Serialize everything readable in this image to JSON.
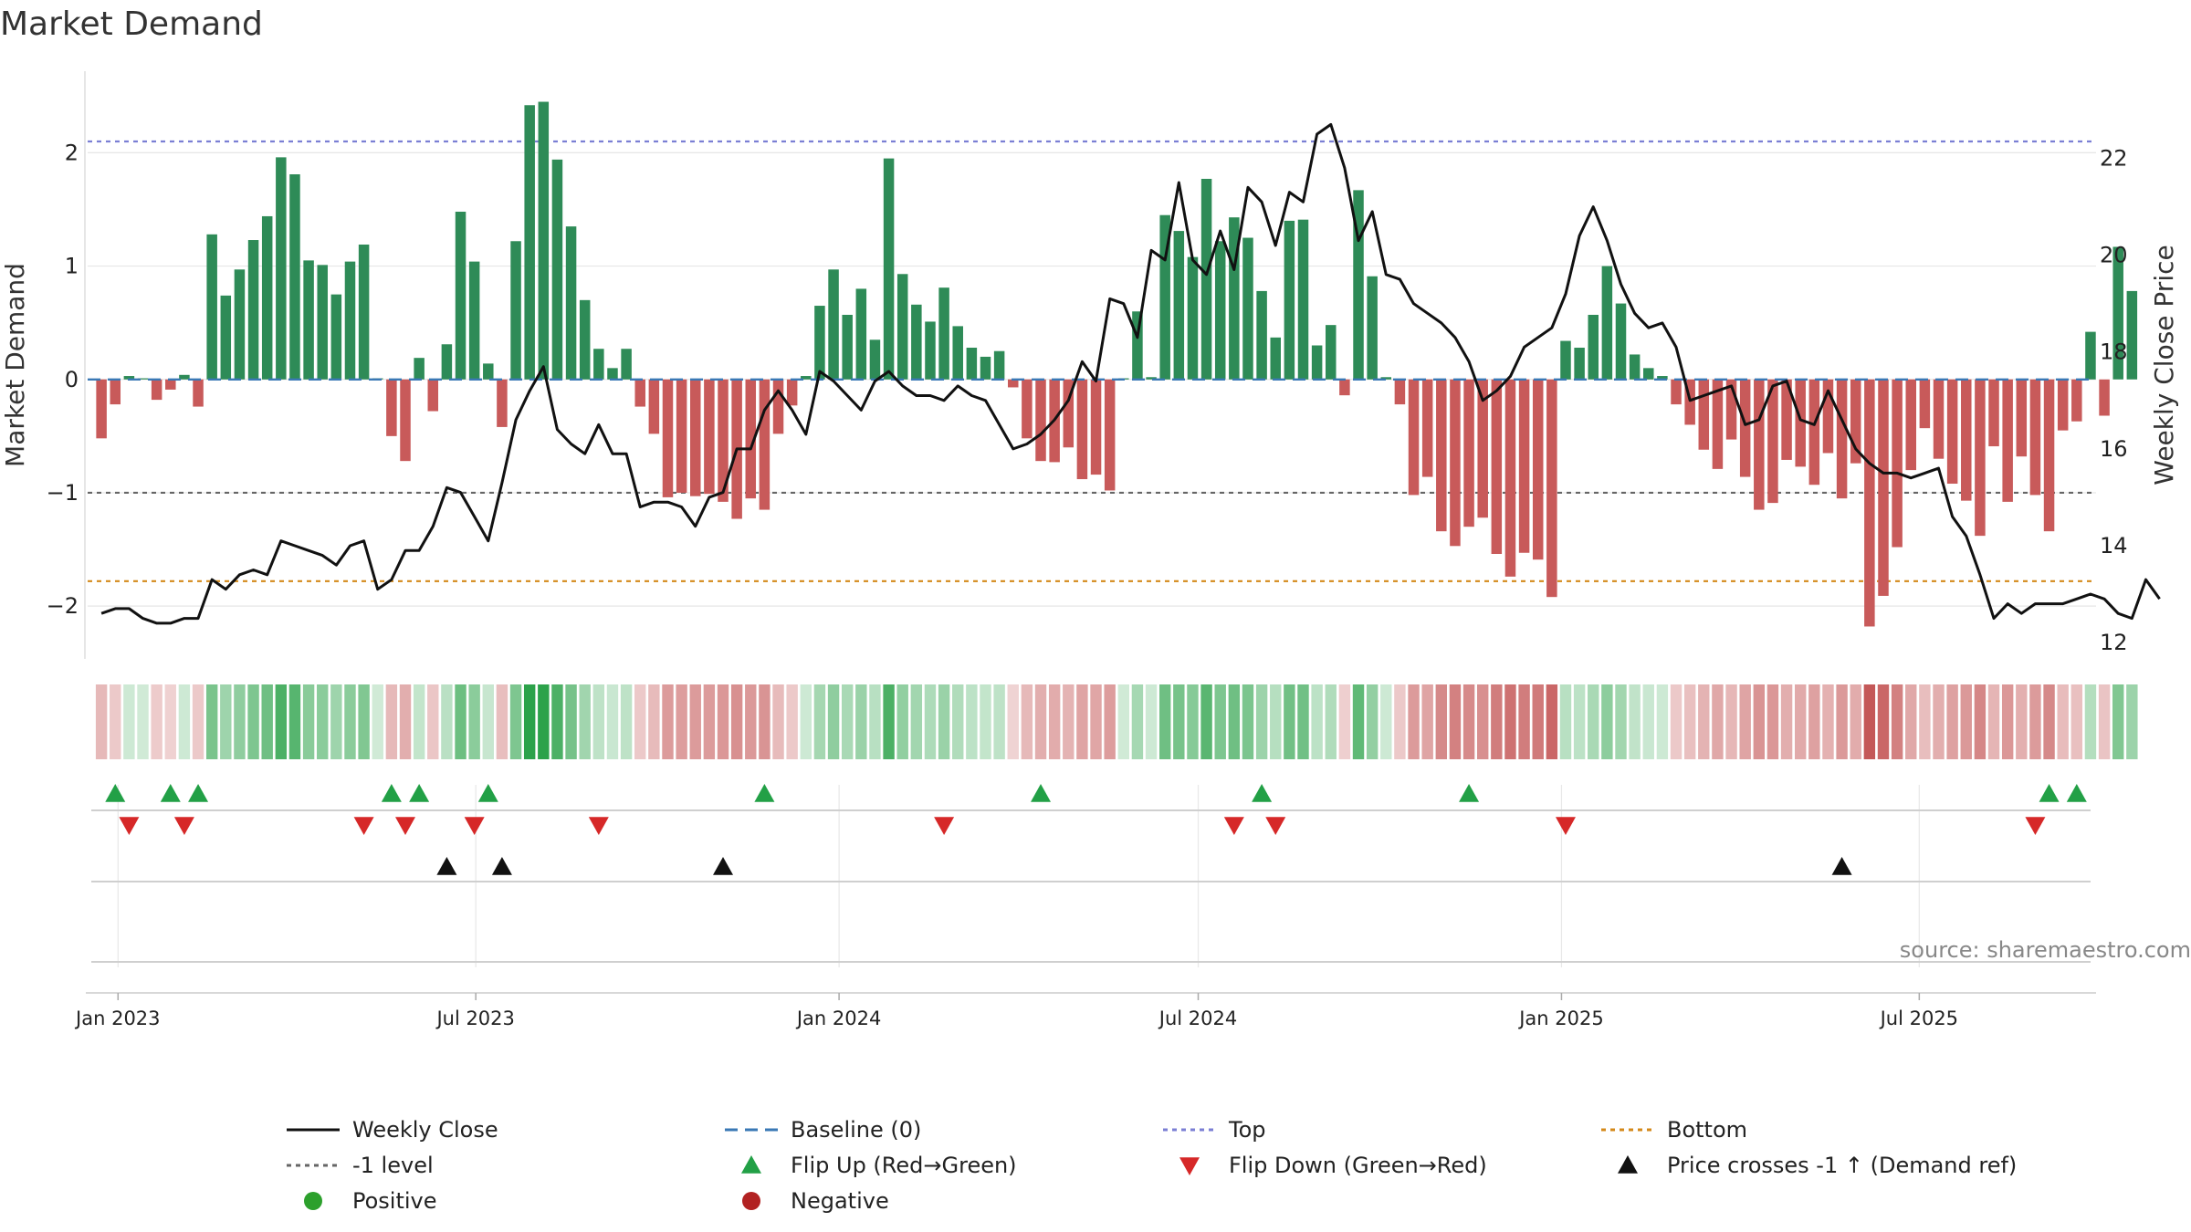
{
  "chart_data": {
    "type": "bar",
    "title": "Market Demand",
    "ylabel": "Market Demand",
    "y2label": "Weekly Close Price",
    "ylim": [
      -2.45,
      2.72
    ],
    "y2lim": [
      11.7,
      23.8
    ],
    "yticks": [
      "2",
      "1",
      "0",
      "−1",
      "−2"
    ],
    "ytick_values": [
      2,
      1,
      0,
      -1,
      -2
    ],
    "y2ticks": [
      "22",
      "20",
      "18",
      "16",
      "14",
      "12"
    ],
    "y2tick_values": [
      22,
      20,
      18,
      16,
      14,
      12
    ],
    "x_start": "2023-01-06",
    "x_interval_days": 7,
    "xlim_weeks": [
      -1.0,
      144.4
    ],
    "xticks": [
      {
        "label": "Jan 2023",
        "week": 1.2
      },
      {
        "label": "Jul 2023",
        "week": 27.1
      },
      {
        "label": "Jan 2024",
        "week": 53.4
      },
      {
        "label": "Jul 2024",
        "week": 79.4
      },
      {
        "label": "Jan 2025",
        "week": 105.7
      },
      {
        "label": "Jul 2025",
        "week": 131.6
      }
    ],
    "reference_lines": {
      "top": 2.1,
      "bottom": -1.78,
      "minus_one": -1.0,
      "baseline": 0
    },
    "series": [
      {
        "name": "Market Demand",
        "kind": "bar",
        "values": [
          -0.52,
          -0.22,
          0.03,
          0.01,
          -0.18,
          -0.09,
          0.04,
          -0.24,
          1.28,
          0.74,
          0.97,
          1.23,
          1.44,
          1.96,
          1.81,
          1.05,
          1.01,
          0.75,
          1.04,
          1.19,
          0.01,
          -0.5,
          -0.72,
          0.19,
          -0.28,
          0.31,
          1.48,
          1.04,
          0.14,
          -0.42,
          1.22,
          2.42,
          2.45,
          1.94,
          1.35,
          0.7,
          0.27,
          0.1,
          0.27,
          -0.24,
          -0.48,
          -1.04,
          -1.0,
          -1.03,
          -1.01,
          -1.08,
          -1.23,
          -1.05,
          -1.15,
          -0.48,
          -0.23,
          0.03,
          0.65,
          0.97,
          0.57,
          0.8,
          0.35,
          1.95,
          0.93,
          0.66,
          0.51,
          0.81,
          0.47,
          0.28,
          0.2,
          0.25,
          -0.07,
          -0.52,
          -0.72,
          -0.73,
          -0.6,
          -0.88,
          -0.84,
          -0.98,
          0.01,
          0.6,
          0.02,
          1.45,
          1.31,
          1.08,
          1.77,
          1.22,
          1.43,
          1.25,
          0.78,
          0.37,
          1.4,
          1.41,
          0.3,
          0.48,
          -0.14,
          1.67,
          0.91,
          0.02,
          -0.22,
          -1.02,
          -0.86,
          -1.34,
          -1.47,
          -1.3,
          -1.22,
          -1.54,
          -1.74,
          -1.53,
          -1.59,
          -1.92,
          0.34,
          0.28,
          0.57,
          1.0,
          0.67,
          0.22,
          0.1,
          0.03,
          -0.22,
          -0.4,
          -0.62,
          -0.79,
          -0.53,
          -0.86,
          -1.15,
          -1.09,
          -0.71,
          -0.77,
          -0.93,
          -0.65,
          -1.05,
          -0.74,
          -2.18,
          -1.91,
          -1.48,
          -0.8,
          -0.43,
          -0.7,
          -0.92,
          -1.07,
          -1.38,
          -0.59,
          -1.08,
          -0.68,
          -1.02,
          -1.34,
          -0.45,
          -0.37,
          0.42,
          -0.32,
          1.17,
          0.78
        ]
      },
      {
        "name": "Weekly Close",
        "kind": "line",
        "values": [
          12.6,
          12.7,
          12.7,
          12.5,
          12.4,
          12.4,
          12.5,
          12.5,
          13.3,
          13.1,
          13.4,
          13.5,
          13.4,
          14.1,
          14.0,
          13.9,
          13.8,
          13.6,
          14.0,
          14.1,
          13.1,
          13.3,
          13.9,
          13.9,
          14.4,
          15.2,
          15.1,
          14.6,
          14.1,
          15.3,
          16.6,
          17.2,
          17.7,
          16.4,
          16.1,
          15.9,
          16.5,
          15.9,
          15.9,
          14.8,
          14.9,
          14.9,
          14.8,
          14.4,
          15.0,
          15.1,
          16.0,
          16.0,
          16.8,
          17.2,
          16.8,
          16.3,
          17.6,
          17.4,
          17.1,
          16.8,
          17.4,
          17.6,
          17.3,
          17.1,
          17.1,
          17.0,
          17.3,
          17.1,
          17.0,
          16.5,
          16.0,
          16.1,
          16.3,
          16.6,
          17.0,
          17.8,
          17.4,
          19.1,
          19.0,
          18.3,
          20.1,
          19.9,
          21.5,
          19.9,
          19.6,
          20.5,
          19.7,
          21.4,
          21.1,
          20.2,
          21.3,
          21.1,
          22.5,
          22.7,
          21.8,
          20.3,
          20.9,
          19.6,
          19.5,
          19.0,
          18.8,
          18.6,
          18.3,
          17.8,
          17.0,
          17.2,
          17.5,
          18.1,
          18.3,
          18.5,
          19.2,
          20.4,
          21.0,
          20.3,
          19.4,
          18.8,
          18.5,
          18.6,
          18.1,
          17.0,
          17.1,
          17.2,
          17.3,
          16.5,
          16.6,
          17.3,
          17.4,
          16.6,
          16.5,
          17.2,
          16.6,
          16.0,
          15.7,
          15.5,
          15.5,
          15.4,
          15.5,
          15.6,
          14.6,
          14.2,
          13.4,
          12.5,
          12.8,
          12.6,
          12.8,
          12.8,
          12.8,
          12.9,
          13.0,
          12.9,
          12.6,
          12.5,
          13.3,
          12.9
        ]
      }
    ],
    "flip_up_weeks": [
      1,
      5,
      7,
      21,
      23,
      28,
      48,
      68,
      84,
      99,
      141,
      143
    ],
    "flip_down_weeks": [
      2,
      6,
      19,
      22,
      27,
      36,
      61,
      82,
      85,
      106,
      140
    ],
    "price_cross_weeks": [
      25,
      29,
      45,
      126
    ],
    "legend": {
      "position": "bottom",
      "entries": [
        "Weekly Close",
        "Baseline (0)",
        "Top",
        "Bottom",
        "-1 level",
        "Flip Up (Red→Green)",
        "Flip Down (Green→Red)",
        "Price crosses -1 ↑ (Demand ref)",
        "Positive",
        "Negative"
      ]
    },
    "source_note": "source: sharemaestro.com"
  },
  "colors": {
    "positive_bar": "#2e8b57",
    "negative_bar": "#c85a5a",
    "price_line": "#111111",
    "top_line": "#7b7fd4",
    "bottom_line": "#d4891a",
    "minus_one_line": "#666666",
    "baseline": "#3a78b5",
    "flip_up": "#22a046",
    "flip_down": "#d62828",
    "price_cross": "#111111",
    "positive_dot": "#2ca02c",
    "negative_dot": "#b22222"
  }
}
